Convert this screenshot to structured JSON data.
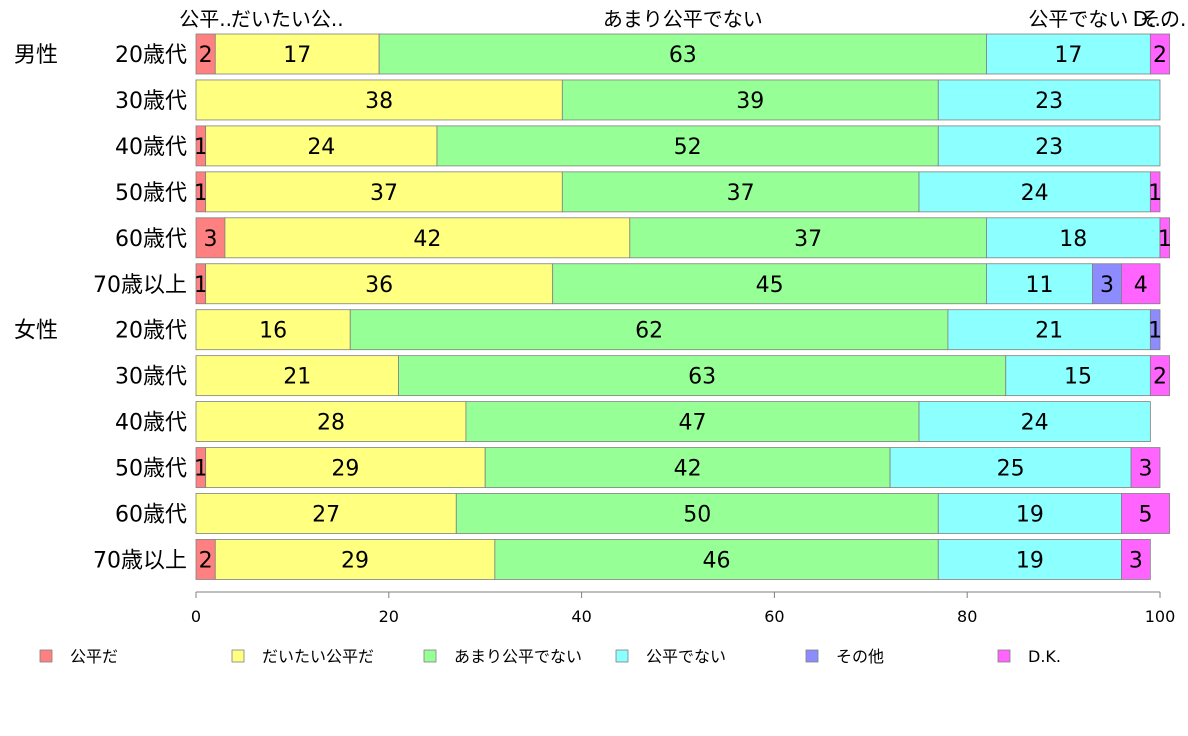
{
  "chart_data": {
    "type": "bar",
    "orientation": "horizontal",
    "stacked": true,
    "title": "",
    "xlabel": "",
    "ylabel": "",
    "xlim": [
      0,
      100
    ],
    "x_ticks": [
      0,
      20,
      40,
      60,
      80,
      100
    ],
    "grid": false,
    "legend_position": "bottom",
    "top_labels": [
      "公平..",
      "だいたい公..",
      "あまり公平でない",
      "公平でない",
      "その..",
      "D..."
    ],
    "groups": [
      {
        "label": "男性",
        "start": 0
      },
      {
        "label": "女性",
        "start": 6
      }
    ],
    "categories": [
      "20歳代",
      "30歳代",
      "40歳代",
      "50歳代",
      "60歳代",
      "70歳以上",
      "20歳代",
      "30歳代",
      "40歳代",
      "50歳代",
      "60歳代",
      "70歳以上"
    ],
    "series": [
      {
        "name": "公平だ",
        "color": "#FF8080",
        "values": [
          2,
          0,
          1,
          1,
          3,
          1,
          0,
          0,
          0,
          1,
          0,
          2
        ]
      },
      {
        "name": "だいたい公平だ",
        "color": "#FFFF80",
        "values": [
          17,
          38,
          24,
          37,
          42,
          36,
          16,
          21,
          28,
          29,
          27,
          29
        ]
      },
      {
        "name": "あまり公平でない",
        "color": "#96FF96",
        "values": [
          63,
          39,
          52,
          37,
          37,
          45,
          62,
          63,
          47,
          42,
          50,
          46
        ]
      },
      {
        "name": "公平でない",
        "color": "#8CFFFF",
        "values": [
          17,
          23,
          23,
          24,
          18,
          11,
          21,
          15,
          24,
          25,
          19,
          19
        ]
      },
      {
        "name": "その他",
        "color": "#8C8CFF",
        "values": [
          0,
          0,
          0,
          0,
          0,
          3,
          1,
          0,
          0,
          0,
          0,
          0
        ]
      },
      {
        "name": "D.K.",
        "color": "#FF64FF",
        "values": [
          2,
          0,
          0,
          1,
          1,
          4,
          0,
          2,
          0,
          3,
          5,
          3
        ]
      }
    ]
  }
}
